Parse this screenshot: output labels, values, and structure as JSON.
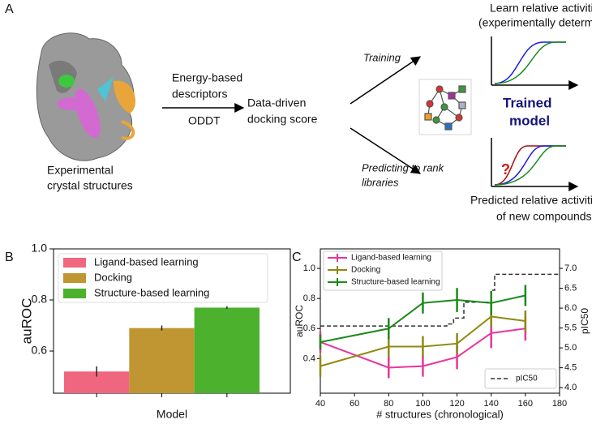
{
  "panel_a": {
    "label": "A",
    "structure_caption": [
      "Experimental",
      "crystal structures"
    ],
    "descriptor_label": [
      "Energy-based",
      "descriptors"
    ],
    "tool_label": "ODDT",
    "score_label": [
      "Data-driven",
      "docking score"
    ],
    "training_label": "Training",
    "predicting_label": [
      "Predicting to rank",
      "libraries"
    ],
    "model_label": [
      "Trained",
      "model"
    ],
    "learn_caption": [
      "Learn relative activities",
      "(experimentally determined)"
    ],
    "unknown_mark": "?",
    "predict_caption": [
      "Predicted relative activities",
      "of new compounds"
    ]
  },
  "chart_data": [
    {
      "type": "bar",
      "panel_label": "B",
      "xlabel": "Model",
      "ylabel": "auROC",
      "categories": [
        null,
        null,
        null
      ],
      "values": [
        0.52,
        0.69,
        0.77
      ],
      "errors": [
        0.02,
        0.01,
        0.005
      ],
      "colors": [
        "#f0667f",
        "#bf9631",
        "#4cb12d"
      ],
      "legend": [
        "Ligand-based learning",
        "Docking",
        "Structure-based learning"
      ],
      "ylim": [
        0.435,
        1.0
      ],
      "yticks": [
        0.6,
        0.8,
        {
          "value": 1.0,
          "label": "1.0"
        }
      ]
    },
    {
      "type": "line",
      "panel_label": "C",
      "xlabel": "# structures (chronological)",
      "ylabel": "auROC",
      "y2label": "pIC50",
      "x": [
        40,
        80,
        100,
        120,
        140,
        160
      ],
      "series": [
        {
          "name": "Ligand-based learning",
          "color": "#e8359a",
          "values": [
            0.51,
            0.34,
            0.35,
            0.41,
            0.57,
            0.6
          ],
          "errors": [
            0.07,
            0.07,
            0.07,
            0.08,
            0.1,
            0.08
          ]
        },
        {
          "name": "Docking",
          "color": "#8f8a12",
          "values": [
            0.35,
            0.48,
            0.48,
            0.5,
            0.68,
            0.65
          ],
          "errors": [
            0.07,
            0.07,
            0.07,
            0.07,
            0.07,
            0.07
          ]
        },
        {
          "name": "Structure-based learning",
          "color": "#1b8a1b",
          "values": [
            0.51,
            0.6,
            0.77,
            0.79,
            0.77,
            0.82
          ],
          "errors": [
            0.05,
            0.07,
            0.07,
            0.08,
            0.08,
            0.07
          ]
        }
      ],
      "step_series": {
        "name": "pIC50",
        "color": "#333333",
        "axis": "y2",
        "x": [
          40,
          114,
          118,
          124,
          140,
          142,
          180
        ],
        "values": [
          5.55,
          5.6,
          5.75,
          6.15,
          6.45,
          6.85,
          6.85
        ]
      },
      "xlim": [
        40,
        180
      ],
      "xticks": [
        40,
        60,
        80,
        100,
        120,
        140,
        160,
        180
      ],
      "ylim": [
        0.17,
        1.13
      ],
      "yticks": [
        0.4,
        0.6,
        0.8,
        {
          "value": 1.0,
          "label": "1.0"
        }
      ],
      "y2lim": [
        3.86,
        7.49
      ],
      "y2ticks": [
        {
          "value": 4.0,
          "label": "4.0"
        },
        4.5,
        {
          "value": 5.0,
          "label": "5.0"
        },
        5.5,
        {
          "value": 6.0,
          "label": "6.0"
        },
        6.5,
        {
          "value": 7.0,
          "label": "7.0"
        }
      ]
    }
  ]
}
